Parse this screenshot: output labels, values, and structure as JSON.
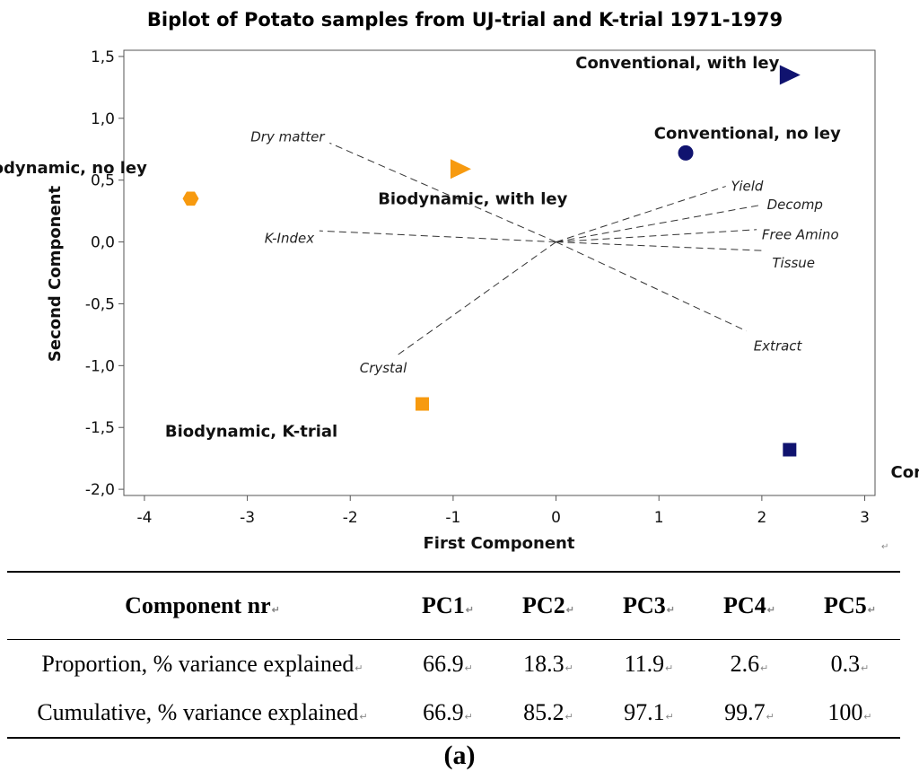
{
  "chart_data": {
    "type": "scatter",
    "title": "Biplot of Potato samples from UJ-trial and K-trial 1971-1979",
    "xlabel": "First Component",
    "ylabel": "Second Component",
    "xlim": [
      -4.2,
      3.1
    ],
    "ylim": [
      -2.05,
      1.55
    ],
    "xticks": [
      -4,
      -3,
      -2,
      -1,
      0,
      1,
      2,
      3
    ],
    "yticks": [
      1.5,
      1.0,
      0.5,
      0.0,
      -0.5,
      -1.0,
      -1.5,
      -2.0
    ],
    "xtick_labels": [
      "-4",
      "-3",
      "-2",
      "-1",
      "0",
      "1",
      "2",
      "3"
    ],
    "ytick_labels": [
      "1,5",
      "1,0",
      "0,5",
      "0,0",
      "-0,5",
      "-1,0",
      "-1,5",
      "-2,0"
    ],
    "grid": false,
    "points": [
      {
        "name": "Conventional, with ley",
        "x": 2.27,
        "y": 1.35,
        "marker": "triangle",
        "color": "#10136f"
      },
      {
        "name": "Conventional, no ley",
        "x": 1.26,
        "y": 0.72,
        "marker": "circle",
        "color": "#10136f"
      },
      {
        "name": "Biodynamic, no ley",
        "x": -3.55,
        "y": 0.35,
        "marker": "hexagon",
        "color": "#f79a0f"
      },
      {
        "name": "Biodynamic, with ley",
        "x": -0.93,
        "y": 0.59,
        "marker": "triangle",
        "color": "#f79a0f"
      },
      {
        "name": "Biodynamic, K-trial",
        "x": -1.3,
        "y": -1.31,
        "marker": "square",
        "color": "#f79a0f"
      },
      {
        "name": "Conventional, K-trial",
        "x": 2.27,
        "y": -1.68,
        "marker": "square",
        "color": "#10136f"
      }
    ],
    "loadings": [
      {
        "name": "Dry matter",
        "x": -2.2,
        "y": 0.8
      },
      {
        "name": "Yield",
        "x": 1.65,
        "y": 0.45
      },
      {
        "name": "Decomp",
        "x": 2.0,
        "y": 0.3
      },
      {
        "name": "Free Amino",
        "x": 1.95,
        "y": 0.1
      },
      {
        "name": "Tissue",
        "x": 2.0,
        "y": -0.07
      },
      {
        "name": "Extract",
        "x": 1.85,
        "y": -0.72
      },
      {
        "name": "K-Index",
        "x": -2.3,
        "y": 0.09
      },
      {
        "name": "Crystal",
        "x": -1.55,
        "y": -0.92
      }
    ],
    "paragraph_mark": "↵"
  },
  "table": {
    "headers": [
      "Component nr",
      "PC1",
      "PC2",
      "PC3",
      "PC4",
      "PC5"
    ],
    "rows": [
      {
        "label": "Proportion, % variance explained",
        "values": [
          "66.9",
          "18.3",
          "11.9",
          "2.6",
          "0.3"
        ]
      },
      {
        "label": "Cumulative, % variance explained",
        "values": [
          "66.9",
          "85.2",
          "97.1",
          "99.7",
          "100"
        ]
      }
    ]
  },
  "caption": "(a)"
}
